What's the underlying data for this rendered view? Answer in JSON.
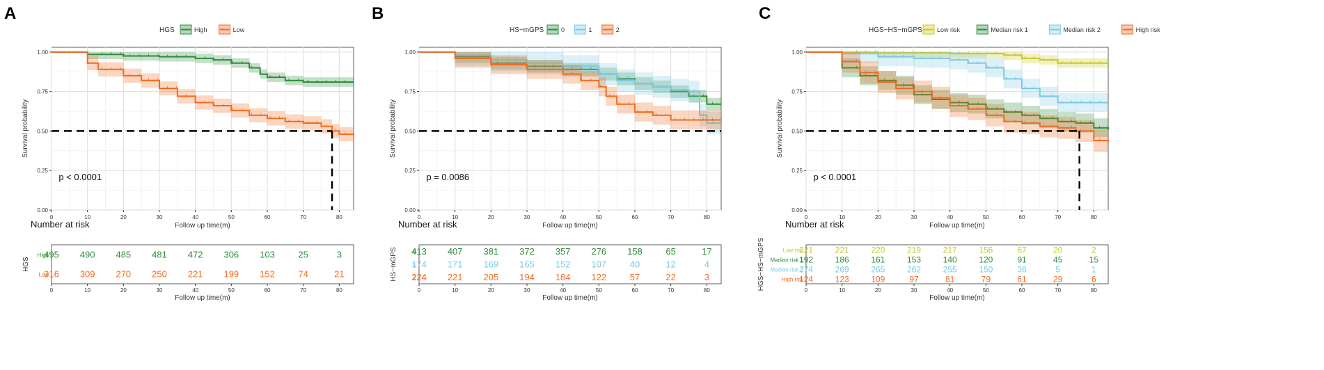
{
  "chart_data": [
    {
      "type": "line",
      "panel_label": "A",
      "legend_title": "HGS",
      "legend": [
        "High",
        "Low"
      ],
      "xlabel": "Follow up time(m)",
      "ylabel": "Survival probability",
      "xlim": [
        0,
        84
      ],
      "ylim": [
        0,
        1.03
      ],
      "xticks": [
        0,
        10,
        20,
        30,
        40,
        50,
        60,
        70,
        80
      ],
      "yticks": [
        "0.00",
        "0.25",
        "0.50",
        "0.75",
        "1.00"
      ],
      "pvalue": "p < 0.0001",
      "median_line": {
        "y": 0.5,
        "x_end": 78,
        "drop_at": 78
      },
      "series": [
        {
          "name": "High",
          "color": "#2e8b3a",
          "band": 0.03,
          "points": [
            [
              0,
              1
            ],
            [
              9,
              1
            ],
            [
              10,
              0.985
            ],
            [
              20,
              0.975
            ],
            [
              30,
              0.97
            ],
            [
              40,
              0.96
            ],
            [
              45,
              0.95
            ],
            [
              50,
              0.93
            ],
            [
              55,
              0.9
            ],
            [
              58,
              0.86
            ],
            [
              60,
              0.84
            ],
            [
              65,
              0.82
            ],
            [
              70,
              0.81
            ],
            [
              84,
              0.81
            ]
          ]
        },
        {
          "name": "Low",
          "color": "#f26a21",
          "band": 0.045,
          "points": [
            [
              0,
              1
            ],
            [
              9,
              1
            ],
            [
              10,
              0.93
            ],
            [
              13,
              0.89
            ],
            [
              20,
              0.85
            ],
            [
              25,
              0.82
            ],
            [
              30,
              0.77
            ],
            [
              35,
              0.72
            ],
            [
              40,
              0.68
            ],
            [
              45,
              0.66
            ],
            [
              50,
              0.63
            ],
            [
              55,
              0.6
            ],
            [
              60,
              0.58
            ],
            [
              65,
              0.56
            ],
            [
              70,
              0.55
            ],
            [
              75,
              0.53
            ],
            [
              78,
              0.5
            ],
            [
              80,
              0.48
            ],
            [
              84,
              0.47
            ]
          ]
        }
      ],
      "risk_table": {
        "title": "Number at risk",
        "ylabel": "HGS",
        "xlabel": "Follow up time(m)",
        "rows": [
          {
            "label": "High",
            "color": "#2e8b3a",
            "values": [
              "495",
              "490",
              "485",
              "481",
              "472",
              "306",
              "103",
              "25",
              "3"
            ]
          },
          {
            "label": "Low",
            "color": "#f26a21",
            "values": [
              "316",
              "309",
              "270",
              "250",
              "221",
              "199",
              "152",
              "74",
              "21"
            ]
          }
        ]
      }
    },
    {
      "type": "line",
      "panel_label": "B",
      "legend_title": "HS−mGPS",
      "legend": [
        "0",
        "1",
        "2"
      ],
      "xlabel": "Follow up time(m)",
      "ylabel": "Survival probability",
      "xlim": [
        0,
        84
      ],
      "ylim": [
        0,
        1.03
      ],
      "xticks": [
        0,
        10,
        20,
        30,
        40,
        50,
        60,
        70,
        80
      ],
      "yticks": [
        "0.00",
        "0.25",
        "0.50",
        "0.75",
        "1.00"
      ],
      "pvalue": "p = 0.0086",
      "median_line": {
        "y": 0.5,
        "x_end": 84,
        "drop_at": null
      },
      "series": [
        {
          "name": "0",
          "color": "#2e8b3a",
          "band": 0.04,
          "points": [
            [
              0,
              1
            ],
            [
              10,
              0.97
            ],
            [
              20,
              0.93
            ],
            [
              30,
              0.91
            ],
            [
              40,
              0.89
            ],
            [
              50,
              0.86
            ],
            [
              55,
              0.83
            ],
            [
              60,
              0.8
            ],
            [
              65,
              0.78
            ],
            [
              70,
              0.75
            ],
            [
              75,
              0.72
            ],
            [
              80,
              0.67
            ],
            [
              84,
              0.67
            ]
          ]
        },
        {
          "name": "1",
          "color": "#7ec8e3",
          "band": 0.07,
          "points": [
            [
              0,
              1
            ],
            [
              10,
              0.98
            ],
            [
              20,
              0.95
            ],
            [
              30,
              0.93
            ],
            [
              40,
              0.91
            ],
            [
              50,
              0.86
            ],
            [
              55,
              0.82
            ],
            [
              60,
              0.8
            ],
            [
              65,
              0.78
            ],
            [
              70,
              0.76
            ],
            [
              75,
              0.75
            ],
            [
              78,
              0.6
            ],
            [
              80,
              0.55
            ],
            [
              84,
              0.55
            ]
          ]
        },
        {
          "name": "2",
          "color": "#f26a21",
          "band": 0.06,
          "points": [
            [
              0,
              1
            ],
            [
              10,
              0.96
            ],
            [
              20,
              0.92
            ],
            [
              30,
              0.89
            ],
            [
              40,
              0.86
            ],
            [
              45,
              0.82
            ],
            [
              50,
              0.78
            ],
            [
              52,
              0.72
            ],
            [
              55,
              0.67
            ],
            [
              60,
              0.62
            ],
            [
              65,
              0.6
            ],
            [
              70,
              0.57
            ],
            [
              80,
              0.57
            ],
            [
              84,
              0.57
            ]
          ]
        }
      ],
      "risk_table": {
        "title": "Number at risk",
        "ylabel": "HS−mGPS",
        "xlabel": "Follow up time(m)",
        "rows": [
          {
            "label": "0",
            "color": "#2e8b3a",
            "values": [
              "413",
              "407",
              "381",
              "372",
              "357",
              "276",
              "158",
              "65",
              "17"
            ]
          },
          {
            "label": "1",
            "color": "#7ec8e3",
            "values": [
              "174",
              "171",
              "169",
              "165",
              "152",
              "107",
              "40",
              "12",
              "4"
            ]
          },
          {
            "label": "2",
            "color": "#f26a21",
            "values": [
              "224",
              "221",
              "205",
              "194",
              "184",
              "122",
              "57",
              "22",
              "3"
            ]
          }
        ]
      }
    },
    {
      "type": "line",
      "panel_label": "C",
      "legend_title": "HGS−HS−mGPS",
      "legend": [
        "Low risk",
        "Median risk 1",
        "Median risk 2",
        "High risk"
      ],
      "xlabel": "Follow up time(m)",
      "ylabel": "Survival probability",
      "xlim": [
        0,
        84
      ],
      "ylim": [
        0,
        1.03
      ],
      "xticks": [
        0,
        10,
        20,
        30,
        40,
        50,
        60,
        70,
        80
      ],
      "yticks": [
        "0.00",
        "0.25",
        "0.50",
        "0.75",
        "1.00"
      ],
      "pvalue": "p < 0.0001",
      "median_line": {
        "y": 0.5,
        "x_end": 76,
        "drop_at": 76
      },
      "series": [
        {
          "name": "Low risk",
          "color": "#c8c820",
          "band": 0.03,
          "points": [
            [
              0,
              1
            ],
            [
              20,
              0.995
            ],
            [
              40,
              0.99
            ],
            [
              55,
              0.98
            ],
            [
              60,
              0.96
            ],
            [
              65,
              0.95
            ],
            [
              70,
              0.93
            ],
            [
              84,
              0.92
            ]
          ]
        },
        {
          "name": "Median risk 1",
          "color": "#2e8b3a",
          "band": 0.06,
          "points": [
            [
              0,
              1
            ],
            [
              9,
              1
            ],
            [
              10,
              0.9
            ],
            [
              15,
              0.85
            ],
            [
              20,
              0.82
            ],
            [
              25,
              0.79
            ],
            [
              30,
              0.73
            ],
            [
              35,
              0.7
            ],
            [
              40,
              0.68
            ],
            [
              45,
              0.67
            ],
            [
              50,
              0.64
            ],
            [
              55,
              0.62
            ],
            [
              60,
              0.6
            ],
            [
              65,
              0.58
            ],
            [
              70,
              0.56
            ],
            [
              75,
              0.55
            ],
            [
              80,
              0.52
            ],
            [
              84,
              0.51
            ]
          ]
        },
        {
          "name": "Median risk 2",
          "color": "#7ec8e3",
          "band": 0.06,
          "points": [
            [
              0,
              1
            ],
            [
              10,
              0.99
            ],
            [
              20,
              0.97
            ],
            [
              30,
              0.96
            ],
            [
              40,
              0.95
            ],
            [
              45,
              0.93
            ],
            [
              50,
              0.9
            ],
            [
              55,
              0.83
            ],
            [
              60,
              0.77
            ],
            [
              65,
              0.72
            ],
            [
              70,
              0.68
            ],
            [
              84,
              0.68
            ]
          ]
        },
        {
          "name": "High risk",
          "color": "#f26a21",
          "band": 0.07,
          "points": [
            [
              0,
              1
            ],
            [
              9,
              1
            ],
            [
              10,
              0.94
            ],
            [
              15,
              0.87
            ],
            [
              20,
              0.81
            ],
            [
              25,
              0.77
            ],
            [
              30,
              0.75
            ],
            [
              35,
              0.71
            ],
            [
              40,
              0.66
            ],
            [
              45,
              0.64
            ],
            [
              50,
              0.6
            ],
            [
              55,
              0.56
            ],
            [
              60,
              0.55
            ],
            [
              65,
              0.53
            ],
            [
              70,
              0.52
            ],
            [
              75,
              0.5
            ],
            [
              80,
              0.44
            ],
            [
              84,
              0.43
            ]
          ]
        }
      ],
      "risk_table": {
        "title": "Number at risk",
        "ylabel": "HGS−HS−mGPS",
        "xlabel": "Follow up time(m)",
        "rows": [
          {
            "label": "Low risk",
            "color": "#c8c820",
            "values": [
              "221",
              "221",
              "220",
              "219",
              "217",
              "156",
              "67",
              "20",
              "2"
            ]
          },
          {
            "label": "Median risk 1",
            "color": "#2e8b3a",
            "values": [
              "192",
              "186",
              "161",
              "153",
              "140",
              "120",
              "91",
              "45",
              "15"
            ]
          },
          {
            "label": "Median risk 2",
            "color": "#7ec8e3",
            "values": [
              "274",
              "269",
              "265",
              "262",
              "255",
              "150",
              "36",
              "5",
              "1"
            ]
          },
          {
            "label": "High risk",
            "color": "#f26a21",
            "values": [
              "124",
              "123",
              "109",
              "97",
              "81",
              "79",
              "61",
              "29",
              "6"
            ]
          }
        ]
      }
    }
  ]
}
